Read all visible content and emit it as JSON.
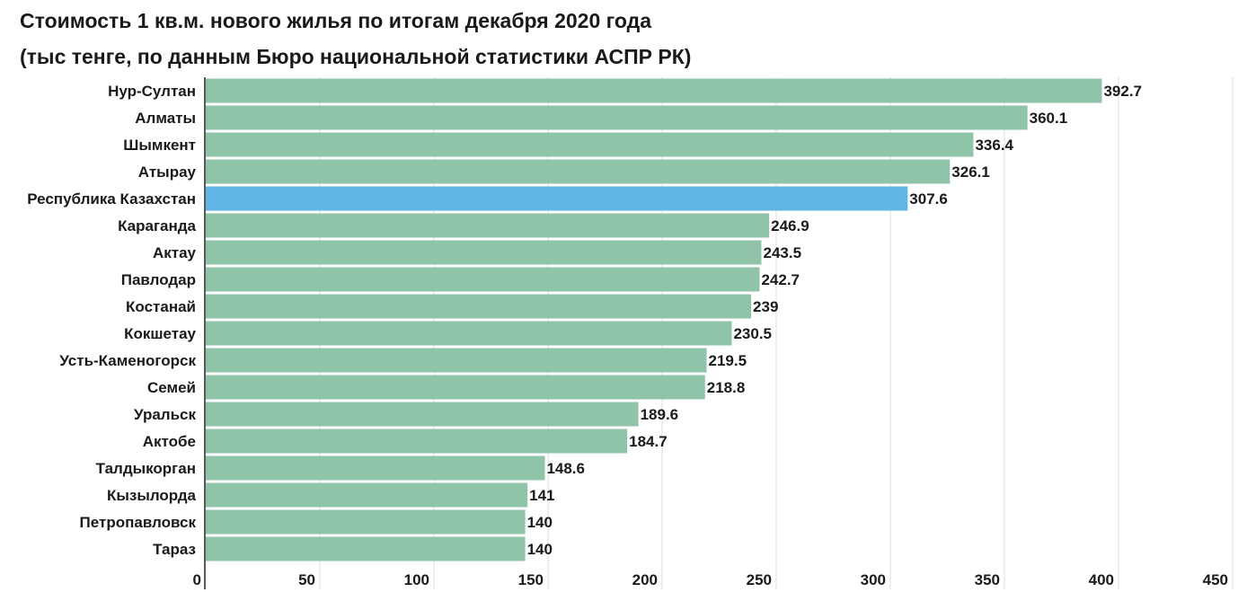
{
  "chart_data": {
    "type": "bar",
    "orientation": "horizontal",
    "title": "Стоимость 1 кв.м. нового жилья по итогам декабря 2020 года",
    "subtitle": "(тыс тенге, по данным Бюро национальной статистики АСПР РК)",
    "categories": [
      "Нур-Султан",
      "Алматы",
      "Шымкент",
      "Атырау",
      "Республика Казахстан",
      "Караганда",
      "Актау",
      "Павлодар",
      "Костанай",
      "Кокшетау",
      "Усть-Каменогорск",
      "Семей",
      "Уральск",
      "Актобе",
      "Талдыкорган",
      "Кызылорда",
      "Петропавловск",
      "Тараз"
    ],
    "values": [
      392.7,
      360.1,
      336.4,
      326.1,
      307.6,
      246.9,
      243.5,
      242.7,
      239,
      230.5,
      219.5,
      218.8,
      189.6,
      184.7,
      148.6,
      141,
      140,
      140
    ],
    "highlight": "Республика Казахстан",
    "bar_color": "#8fc4a8",
    "highlight_color": "#5fb6e6",
    "xlim": [
      0,
      450
    ],
    "xticks": [
      0,
      50,
      100,
      150,
      200,
      250,
      300,
      350,
      400,
      450
    ],
    "grid": true,
    "xlabel": "",
    "ylabel": ""
  }
}
